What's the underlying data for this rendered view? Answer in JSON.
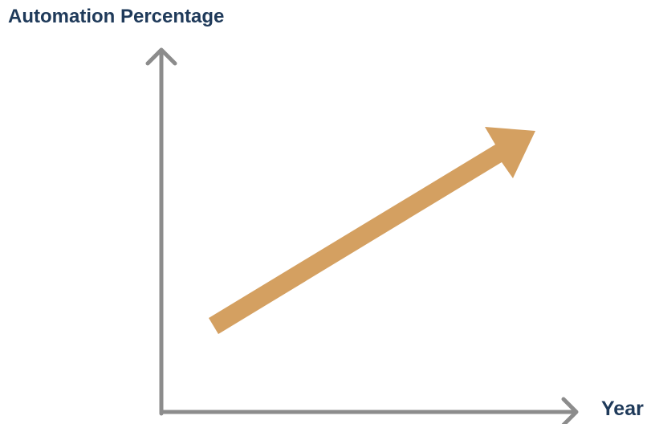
{
  "labels": {
    "y_axis": "Automation Percentage",
    "x_axis": "Year"
  },
  "colors": {
    "label_text": "#1f3a5a",
    "axis": "#8c8c8c",
    "trend_arrow": "#d4a061",
    "background": "#ffffff"
  },
  "trend": {
    "direction": "up",
    "meaning": "Automation percentage increases over years"
  }
}
